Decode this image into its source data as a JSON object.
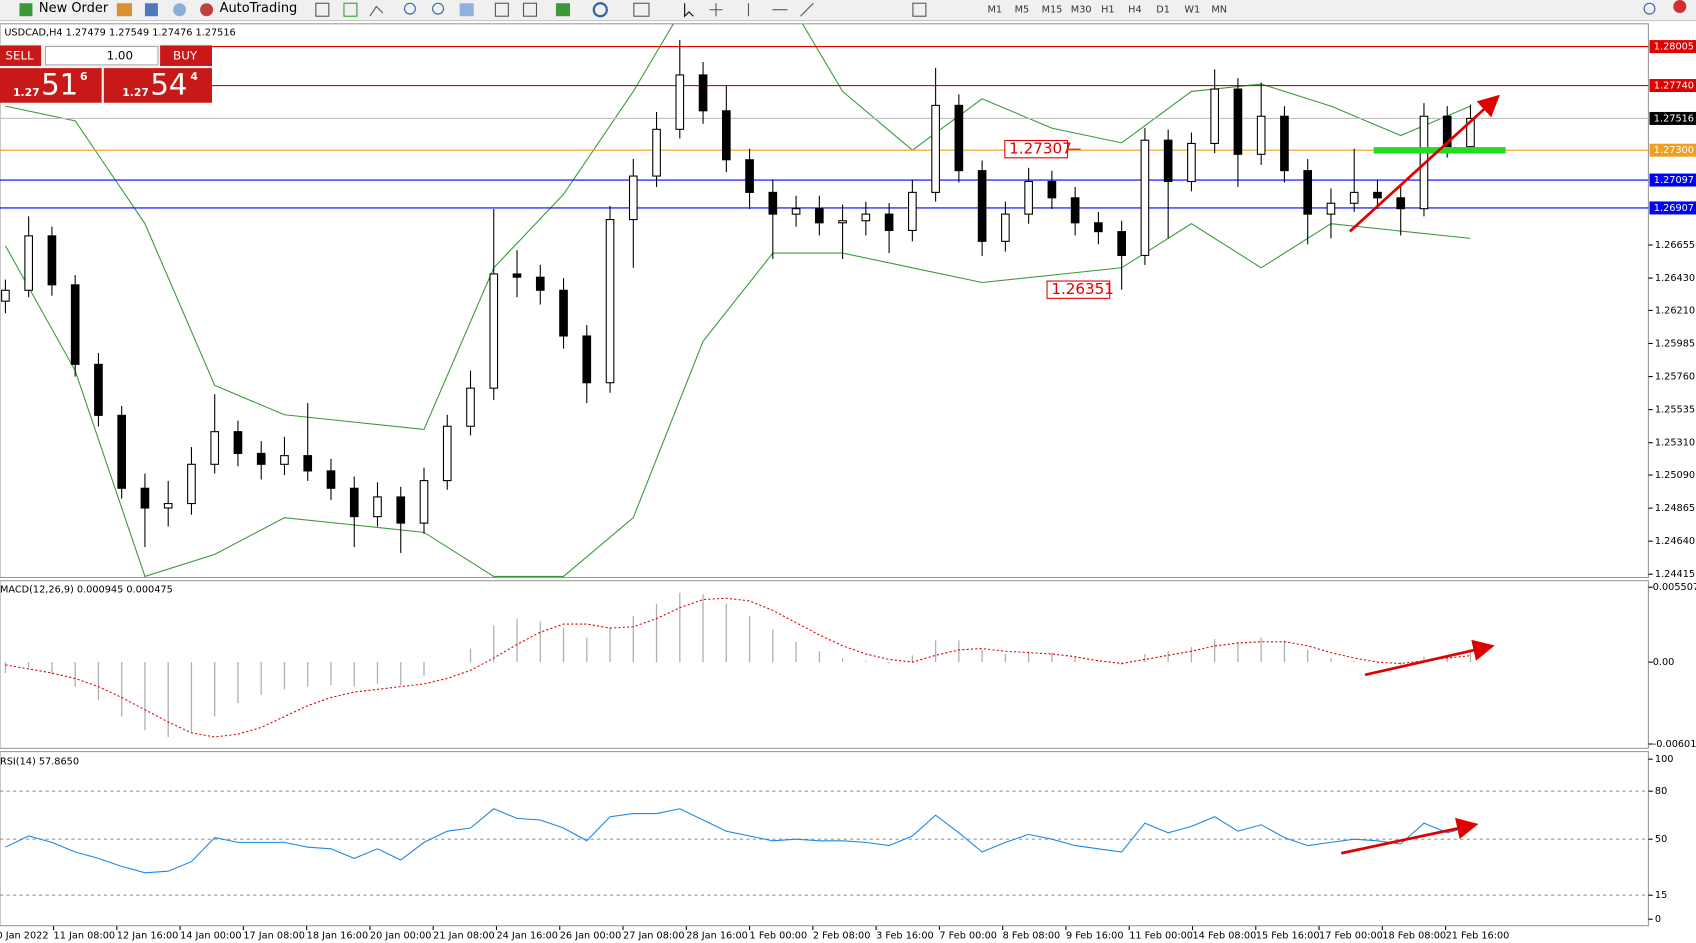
{
  "toolbar": {
    "new_order": "New Order",
    "auto_trading": "AutoTrading",
    "timeframes": [
      "M1",
      "M5",
      "M15",
      "M30",
      "H1",
      "H4",
      "D1",
      "W1",
      "MN"
    ]
  },
  "trade_panel": {
    "sell": "SELL",
    "buy": "BUY",
    "lots": "1.00",
    "bid": [
      "1.27",
      "51",
      "6"
    ],
    "ask": [
      "1.27",
      "54",
      "4"
    ]
  },
  "chart_data": [
    {
      "type": "candlestick",
      "title": "USDCAD,H4 1.27479 1.27549 1.27476 1.27516",
      "x_labels": [
        "10 Jan 2022",
        "11 Jan 08:00",
        "12 Jan 16:00",
        "14 Jan 00:00",
        "17 Jan 08:00",
        "18 Jan 16:00",
        "20 Jan 00:00",
        "21 Jan 08:00",
        "24 Jan 16:00",
        "26 Jan 00:00",
        "27 Jan 08:00",
        "28 Jan 16:00",
        "1 Feb 00:00",
        "2 Feb 08:00",
        "3 Feb 16:00",
        "7 Feb 00:00",
        "8 Feb 08:00",
        "9 Feb 16:00",
        "11 Feb 00:00",
        "14 Feb 08:00",
        "15 Feb 16:00",
        "17 Feb 00:00",
        "18 Feb 08:00",
        "21 Feb 16:00"
      ],
      "open": [
        1.26273,
        1.26347,
        1.26717,
        1.26384,
        1.25843,
        1.25496,
        1.25,
        1.24866,
        1.24896,
        1.25163,
        1.25385,
        1.25237,
        1.25163,
        1.25222,
        1.25118,
        1.25,
        1.24807,
        1.24941,
        1.24763,
        1.25052,
        1.25422,
        1.25681,
        1.26458,
        1.26436,
        1.26347,
        1.26036,
        1.25718,
        1.26828,
        1.27124,
        1.27442,
        1.27812,
        1.27568,
        1.27235,
        1.27013,
        1.26865,
        1.26902,
        1.26806,
        1.2682,
        1.26865,
        1.26754,
        1.27013,
        1.27605,
        1.27161,
        1.2668,
        1.26865,
        1.27087,
        1.26976,
        1.26806,
        1.26746,
        1.26584,
        1.27368,
        1.27087,
        1.27346,
        1.27716,
        1.27272,
        1.27531,
        1.27161,
        1.26865,
        1.26939,
        1.27013,
        1.26976,
        1.26902,
        1.27531,
        1.27324
      ],
      "high": [
        1.2642,
        1.2685,
        1.2678,
        1.2645,
        1.2592,
        1.2556,
        1.251,
        1.2505,
        1.2528,
        1.2564,
        1.2546,
        1.2532,
        1.2535,
        1.2558,
        1.252,
        1.2508,
        1.2504,
        1.2501,
        1.2514,
        1.255,
        1.258,
        1.269,
        1.2662,
        1.2652,
        1.2643,
        1.2611,
        1.2692,
        1.2724,
        1.2756,
        1.2805,
        1.279,
        1.2774,
        1.2731,
        1.271,
        1.2699,
        1.2699,
        1.2693,
        1.2695,
        1.2694,
        1.271,
        1.2786,
        1.2768,
        1.2723,
        1.2695,
        1.2718,
        1.2716,
        1.2705,
        1.2688,
        1.2682,
        1.2745,
        1.2744,
        1.2742,
        1.2785,
        1.2779,
        1.2776,
        1.276,
        1.2724,
        1.2704,
        1.2731,
        1.271,
        1.2706,
        1.2762,
        1.276,
        1.2761
      ],
      "low": [
        1.2619,
        1.263,
        1.2631,
        1.2576,
        1.2542,
        1.2493,
        1.246,
        1.2474,
        1.2482,
        1.251,
        1.2515,
        1.2506,
        1.2509,
        1.2505,
        1.2492,
        1.246,
        1.2474,
        1.2456,
        1.2469,
        1.2499,
        1.2536,
        1.256,
        1.263,
        1.2625,
        1.2595,
        1.2558,
        1.2565,
        1.265,
        1.2705,
        1.2738,
        1.2748,
        1.2715,
        1.269,
        1.2656,
        1.2678,
        1.2672,
        1.2656,
        1.2672,
        1.266,
        1.2668,
        1.2695,
        1.2708,
        1.2658,
        1.2661,
        1.268,
        1.269,
        1.2672,
        1.2666,
        1.26351,
        1.2652,
        1.267,
        1.2702,
        1.2728,
        1.2705,
        1.272,
        1.2708,
        1.2666,
        1.267,
        1.2688,
        1.269,
        1.2672,
        1.2685,
        1.2725,
        1.2729
      ],
      "close": [
        1.26347,
        1.26717,
        1.26384,
        1.25843,
        1.25496,
        1.25,
        1.24866,
        1.24896,
        1.25163,
        1.25385,
        1.25237,
        1.25163,
        1.25222,
        1.25118,
        1.25,
        1.24807,
        1.24941,
        1.24763,
        1.25052,
        1.25422,
        1.25681,
        1.26458,
        1.26436,
        1.26347,
        1.26036,
        1.25718,
        1.26828,
        1.27124,
        1.27442,
        1.27812,
        1.27568,
        1.27235,
        1.27013,
        1.26865,
        1.26902,
        1.26806,
        1.2682,
        1.26865,
        1.26754,
        1.27013,
        1.27605,
        1.27161,
        1.2668,
        1.26865,
        1.27087,
        1.26976,
        1.26806,
        1.26746,
        1.26584,
        1.27368,
        1.27087,
        1.27346,
        1.27716,
        1.27272,
        1.27531,
        1.27161,
        1.26865,
        1.26939,
        1.27013,
        1.26976,
        1.26902,
        1.27531,
        1.27324,
        1.27516
      ],
      "bands_x": [
        0,
        3,
        6,
        9,
        12,
        15,
        18,
        21,
        24,
        27,
        30,
        33,
        36,
        39,
        42,
        45,
        48,
        51,
        54,
        57,
        60,
        63
      ],
      "upper_band": [
        1.276,
        1.275,
        1.268,
        1.257,
        1.255,
        1.2545,
        1.254,
        1.265,
        1.27,
        1.277,
        1.285,
        1.285,
        1.277,
        1.273,
        1.2765,
        1.2745,
        1.2735,
        1.277,
        1.2775,
        1.276,
        1.274,
        1.276
      ],
      "lower_band": [
        1.2665,
        1.258,
        1.244,
        1.2455,
        1.248,
        1.2475,
        1.247,
        1.244,
        1.244,
        1.248,
        1.26,
        1.266,
        1.266,
        1.265,
        1.264,
        1.2645,
        1.265,
        1.268,
        1.265,
        1.268,
        1.2675,
        1.267
      ],
      "band_color": "#3a9a3a",
      "levels": [
        {
          "value": 1.28005,
          "color": "#e00000"
        },
        {
          "value": 1.2774,
          "label": "1.27740",
          "color": "#e00000"
        },
        {
          "value": 1.27516,
          "color": "#000000"
        },
        {
          "value": 1.273,
          "label": "1.27300",
          "color": "#f0a020"
        },
        {
          "value": 1.27097,
          "color": "#0000ff"
        },
        {
          "value": 1.26907,
          "color": "#0000ff"
        }
      ],
      "annotations": [
        {
          "value": 1.27307
        },
        {
          "value": 1.26351
        }
      ],
      "ylim": [
        1.24393,
        1.2816
      ],
      "yticks": [
        1.26655,
        {
          "value": 1.2643,
          "label": "1.26430"
        },
        {
          "value": 1.2621,
          "label": "1.26210"
        },
        1.25985,
        {
          "value": 1.2576,
          "label": "1.25760"
        },
        1.25535,
        {
          "value": 1.2531,
          "label": "1.25310"
        },
        {
          "value": 1.2509,
          "label": "1.25090"
        },
        1.24865,
        {
          "value": 1.2464,
          "label": "1.24640"
        },
        1.24415
      ]
    },
    {
      "type": "macd",
      "title": "MACD(12,26,9) 0.000945 0.000475",
      "histogram": [
        -0.0008,
        -0.0004,
        -0.0009,
        -0.0018,
        -0.0028,
        -0.004,
        -0.005,
        -0.0055,
        -0.0052,
        -0.004,
        -0.003,
        -0.0024,
        -0.002,
        -0.0018,
        -0.0017,
        -0.0018,
        -0.0016,
        -0.0017,
        -0.001,
        0,
        0.001,
        0.0027,
        0.0032,
        0.003,
        0.0025,
        0.0018,
        0.0026,
        0.0034,
        0.0043,
        0.0051,
        0.005,
        0.0043,
        0.0034,
        0.0024,
        0.0015,
        0.0008,
        0.0003,
        0.0001,
        -0.0001,
        0.0005,
        0.0016,
        0.0016,
        0.0009,
        0.0006,
        0.0008,
        0.0007,
        0.0004,
        0.0001,
        -0.0002,
        0.0006,
        0.0008,
        0.0011,
        0.0017,
        0.0015,
        0.0018,
        0.0016,
        0.0009,
        0.0003,
        0.0001,
        -0.0001,
        -0.0002,
        0.0004,
        0.0005,
        0.000945
      ],
      "signal": [
        -0.0002,
        -0.0005,
        -0.0008,
        -0.0012,
        -0.0018,
        -0.0026,
        -0.0035,
        -0.0044,
        -0.0052,
        -0.0055,
        -0.0053,
        -0.0048,
        -0.004,
        -0.0032,
        -0.0026,
        -0.0022,
        -0.002,
        -0.0018,
        -0.0016,
        -0.0012,
        -0.0006,
        0.0003,
        0.0013,
        0.0022,
        0.0028,
        0.0028,
        0.0025,
        0.0026,
        0.0032,
        0.004,
        0.0046,
        0.0047,
        0.0045,
        0.0038,
        0.0029,
        0.002,
        0.0012,
        0.0006,
        0.0002,
        0,
        0.0005,
        0.0009,
        0.001,
        0.0008,
        0.0007,
        0.0006,
        0.0004,
        0.0001,
        -0.0001,
        0.0002,
        0.0005,
        0.0008,
        0.0012,
        0.0014,
        0.0015,
        0.0015,
        0.0012,
        0.0007,
        0.0003,
        0,
        -0.0001,
        0.0001,
        0.0003,
        0.000475
      ],
      "histogram_color": "#b0b0b0",
      "signal_color": "#e00000",
      "ylim": [
        -0.006018,
        0.005507
      ],
      "yticks": [
        -0.006018,
        {
          "value": 0,
          "label": "0.00"
        },
        0.005507
      ]
    },
    {
      "type": "rsi",
      "title": "RSI(14) 57.8650",
      "values": [
        45,
        52,
        48,
        42,
        38,
        33,
        29,
        30,
        36,
        51,
        48,
        48,
        48,
        45,
        44,
        38,
        44,
        37,
        48,
        55,
        57,
        69,
        63,
        62,
        57,
        49,
        64,
        66,
        66,
        69,
        62,
        55,
        52,
        49,
        50,
        49,
        49,
        48,
        46,
        52,
        65,
        54,
        42,
        48,
        53,
        50,
        46,
        44,
        42,
        60,
        54,
        58,
        64,
        55,
        59,
        51,
        46,
        48,
        50,
        49,
        47,
        60,
        54,
        57.865
      ],
      "color": "#1e88e5",
      "grid_levels": [
        80,
        50,
        15
      ],
      "ylim": [
        0,
        100
      ],
      "yticks": [
        0,
        15,
        50,
        80,
        100
      ]
    }
  ]
}
